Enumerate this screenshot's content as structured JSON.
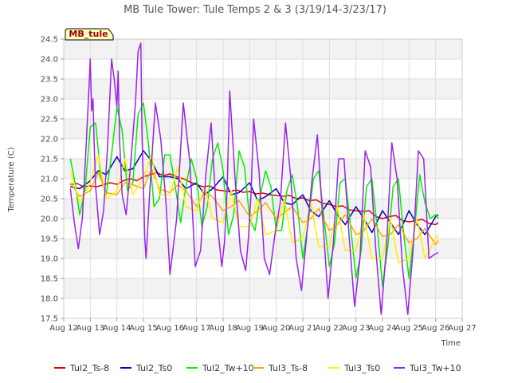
{
  "chart_data": {
    "type": "line",
    "title": "MB Tule Tower: Tule Temps 2 & 3 (3/19/14-3/23/17)",
    "badge": "MB_tule",
    "xlabel": "Time",
    "ylabel": "Temperature (C)",
    "xlim": [
      12,
      27
    ],
    "ylim": [
      17.5,
      24.5
    ],
    "x_ticks": [
      12,
      13,
      14,
      15,
      16,
      17,
      18,
      19,
      20,
      21,
      22,
      23,
      24,
      25,
      26,
      27
    ],
    "x_tick_labels": [
      "Aug 12",
      "Aug 13",
      "Aug 14",
      "Aug 15",
      "Aug 16",
      "Aug 17",
      "Aug 18",
      "Aug 19",
      "Aug 20",
      "Aug 21",
      "Aug 22",
      "Aug 23",
      "Aug 24",
      "Aug 25",
      "Aug 26",
      "Aug 27"
    ],
    "y_ticks": [
      17.5,
      18.0,
      18.5,
      19.0,
      19.5,
      20.0,
      20.5,
      21.0,
      21.5,
      22.0,
      22.5,
      23.0,
      23.5,
      24.0,
      24.5
    ],
    "y_tick_labels": [
      "17.5",
      "18.0",
      "18.5",
      "19.0",
      "19.5",
      "20.0",
      "20.5",
      "21.0",
      "21.5",
      "22.0",
      "22.5",
      "23.0",
      "23.5",
      "24.0",
      "24.5"
    ],
    "grid": true,
    "legend_position": "bottom",
    "series": [
      {
        "name": "Tul2_Ts-8",
        "color": "#dd0000",
        "x": [
          12.25,
          12.5,
          12.75,
          13,
          13.25,
          13.5,
          13.75,
          14,
          14.25,
          14.5,
          14.75,
          15,
          15.25,
          15.5,
          15.75,
          16,
          16.25,
          16.5,
          16.75,
          17,
          17.25,
          17.5,
          17.75,
          18,
          18.25,
          18.5,
          18.75,
          19,
          19.25,
          19.5,
          19.75,
          20,
          20.25,
          20.5,
          20.75,
          21,
          21.25,
          21.5,
          21.75,
          22,
          22.25,
          22.5,
          22.75,
          23,
          23.25,
          23.5,
          23.75,
          24,
          24.25,
          24.5,
          24.75,
          25,
          25.25,
          25.5,
          25.75,
          26,
          26.1
        ],
        "values": [
          20.85,
          20.88,
          20.8,
          20.82,
          20.8,
          20.85,
          20.9,
          20.86,
          20.95,
          21.0,
          20.95,
          21.05,
          21.1,
          21.15,
          21.08,
          21.12,
          21.05,
          21.0,
          20.92,
          20.85,
          20.8,
          20.82,
          20.72,
          20.7,
          20.68,
          20.72,
          20.66,
          20.68,
          20.62,
          20.64,
          20.6,
          20.58,
          20.56,
          20.58,
          20.5,
          20.52,
          20.45,
          20.47,
          20.38,
          20.36,
          20.3,
          20.32,
          20.22,
          20.2,
          20.18,
          20.2,
          20.05,
          20.0,
          20.05,
          20.08,
          19.95,
          19.92,
          19.95,
          19.98,
          19.88,
          19.85,
          19.9
        ]
      },
      {
        "name": "Tul2_Ts0",
        "color": "#0000cc",
        "x": [
          12.25,
          12.6,
          13,
          13.3,
          13.6,
          14,
          14.3,
          14.6,
          15,
          15.3,
          15.6,
          16,
          16.3,
          16.6,
          17,
          17.3,
          17.6,
          18,
          18.3,
          18.6,
          19,
          19.3,
          19.6,
          20,
          20.3,
          20.6,
          21,
          21.3,
          21.6,
          22,
          22.3,
          22.6,
          23,
          23.3,
          23.6,
          24,
          24.3,
          24.6,
          25,
          25.3,
          25.6,
          26,
          26.1
        ],
        "values": [
          20.8,
          20.75,
          20.95,
          21.2,
          21.1,
          21.55,
          21.2,
          21.25,
          21.7,
          21.45,
          21.05,
          21.05,
          21.0,
          20.75,
          20.9,
          20.6,
          20.75,
          21.05,
          20.6,
          20.65,
          20.9,
          20.45,
          20.55,
          20.75,
          20.4,
          20.35,
          20.6,
          20.2,
          20.05,
          20.45,
          20.1,
          19.85,
          20.3,
          20.0,
          19.65,
          20.2,
          19.9,
          19.6,
          20.2,
          19.85,
          19.6,
          20.05,
          20.1
        ]
      },
      {
        "name": "Tul2_Tw+10",
        "color": "#00ee00",
        "x": [
          12.25,
          12.4,
          12.6,
          12.8,
          13,
          13.2,
          13.4,
          13.6,
          13.8,
          14,
          14.2,
          14.4,
          14.6,
          14.8,
          15,
          15.2,
          15.4,
          15.6,
          15.8,
          16,
          16.2,
          16.4,
          16.6,
          16.8,
          17,
          17.2,
          17.4,
          17.6,
          17.8,
          18,
          18.2,
          18.4,
          18.6,
          18.8,
          19,
          19.2,
          19.4,
          19.6,
          19.8,
          20,
          20.2,
          20.4,
          20.6,
          20.8,
          21,
          21.2,
          21.4,
          21.6,
          21.8,
          22,
          22.2,
          22.4,
          22.6,
          22.8,
          23,
          23.2,
          23.4,
          23.6,
          23.8,
          24,
          24.2,
          24.4,
          24.6,
          24.8,
          25,
          25.2,
          25.4,
          25.6,
          25.8,
          26,
          26.1
        ],
        "values": [
          21.5,
          21.0,
          20.1,
          20.7,
          22.3,
          22.4,
          21.0,
          20.6,
          21.6,
          22.8,
          22.2,
          20.7,
          20.9,
          22.6,
          22.9,
          21.8,
          20.3,
          20.5,
          21.6,
          21.6,
          20.8,
          19.9,
          20.8,
          21.5,
          21.0,
          19.8,
          20.3,
          21.5,
          21.9,
          21.2,
          19.6,
          20.1,
          21.7,
          21.3,
          20.0,
          19.7,
          20.6,
          21.2,
          20.8,
          19.7,
          19.7,
          20.7,
          21.1,
          20.3,
          19.0,
          19.9,
          21.0,
          21.2,
          20.0,
          18.8,
          19.4,
          20.9,
          21.0,
          19.8,
          18.5,
          19.2,
          20.8,
          21.0,
          19.8,
          18.3,
          19.3,
          20.8,
          21.0,
          19.6,
          18.5,
          19.7,
          21.1,
          20.4,
          20.0,
          20.1,
          20.0
        ]
      },
      {
        "name": "Tul3_Ts-8",
        "color": "#ffa500",
        "x": [
          12.25,
          12.6,
          13,
          13.3,
          13.6,
          14,
          14.3,
          14.6,
          15,
          15.3,
          15.6,
          16,
          16.3,
          16.6,
          17,
          17.3,
          17.6,
          18,
          18.3,
          18.6,
          19,
          19.3,
          19.6,
          20,
          20.3,
          20.6,
          21,
          21.3,
          21.6,
          22,
          22.3,
          22.6,
          23,
          23.3,
          23.6,
          24,
          24.3,
          24.6,
          25,
          25.3,
          25.6,
          26,
          26.1
        ],
        "values": [
          20.9,
          20.55,
          20.7,
          21.15,
          20.65,
          20.6,
          20.9,
          20.85,
          20.75,
          21.25,
          20.75,
          20.65,
          20.85,
          20.7,
          20.3,
          20.65,
          20.55,
          20.2,
          20.3,
          20.45,
          20.05,
          20.2,
          20.4,
          20.0,
          20.15,
          20.3,
          19.9,
          20.0,
          20.25,
          19.7,
          19.85,
          20.1,
          19.6,
          19.7,
          20.0,
          19.55,
          19.6,
          19.85,
          19.4,
          19.5,
          19.75,
          19.35,
          19.45
        ]
      },
      {
        "name": "Tul3_Ts0",
        "color": "#ffee00",
        "x": [
          12.25,
          12.6,
          13,
          13.3,
          13.6,
          14,
          14.3,
          14.6,
          15,
          15.3,
          15.6,
          16,
          16.3,
          16.6,
          17,
          17.3,
          17.6,
          18,
          18.3,
          18.6,
          19,
          19.3,
          19.6,
          20,
          20.3,
          20.6,
          21,
          21.3,
          21.6,
          22,
          22.3,
          22.6,
          23,
          23.3,
          23.6,
          24,
          24.3,
          24.6,
          25,
          25.3,
          25.6,
          26,
          26.1
        ],
        "values": [
          21.2,
          20.4,
          20.9,
          21.6,
          20.5,
          20.7,
          21.5,
          20.6,
          21.0,
          21.6,
          20.6,
          20.6,
          21.3,
          20.3,
          20.2,
          20.8,
          20.0,
          19.9,
          20.7,
          19.8,
          19.8,
          20.5,
          19.6,
          19.7,
          20.5,
          19.4,
          19.5,
          20.4,
          19.3,
          19.3,
          20.3,
          19.2,
          19.2,
          20.1,
          19.0,
          19.0,
          20.0,
          18.9,
          19.0,
          20.0,
          19.0,
          19.5,
          19.6
        ]
      },
      {
        "name": "Tul3_Tw+10",
        "color": "#9922ee",
        "x": [
          12.25,
          12.4,
          12.55,
          12.7,
          12.85,
          12.95,
          13.0,
          13.05,
          13.1,
          13.15,
          13.2,
          13.35,
          13.5,
          13.65,
          13.8,
          13.9,
          14.0,
          14.05,
          14.1,
          14.2,
          14.35,
          14.5,
          14.7,
          14.8,
          14.9,
          14.95,
          15.0,
          15.05,
          15.1,
          15.25,
          15.45,
          15.65,
          15.85,
          16.0,
          16.25,
          16.5,
          16.75,
          16.95,
          17.15,
          17.35,
          17.55,
          17.75,
          17.95,
          18.05,
          18.15,
          18.25,
          18.45,
          18.65,
          18.85,
          18.95,
          19.05,
          19.15,
          19.35,
          19.55,
          19.75,
          19.95,
          20.15,
          20.35,
          20.55,
          20.75,
          20.95,
          21.15,
          21.35,
          21.55,
          21.75,
          21.95,
          22.15,
          22.35,
          22.55,
          22.75,
          22.95,
          23.15,
          23.35,
          23.55,
          23.75,
          23.95,
          24.15,
          24.35,
          24.55,
          24.75,
          24.95,
          25.15,
          25.35,
          25.55,
          25.75,
          25.95,
          26.1
        ],
        "values": [
          20.75,
          19.9,
          19.25,
          20.0,
          21.9,
          23.3,
          24.0,
          22.7,
          23.0,
          21.8,
          20.8,
          19.6,
          20.2,
          21.8,
          24.0,
          23.5,
          22.8,
          23.7,
          22.0,
          20.6,
          20.1,
          21.2,
          22.9,
          24.2,
          24.4,
          22.0,
          20.8,
          19.5,
          19.0,
          20.8,
          22.9,
          22.0,
          20.4,
          18.6,
          20.0,
          22.9,
          21.4,
          18.8,
          19.2,
          21.1,
          22.4,
          20.1,
          18.8,
          19.4,
          20.7,
          23.2,
          21.0,
          19.2,
          18.7,
          19.5,
          20.6,
          22.5,
          21.2,
          19.0,
          18.6,
          19.6,
          20.4,
          22.4,
          21.0,
          19.0,
          18.2,
          19.6,
          21.0,
          22.1,
          20.0,
          18.0,
          19.4,
          21.5,
          21.5,
          19.5,
          17.8,
          19.0,
          21.7,
          21.3,
          19.2,
          17.6,
          19.3,
          21.9,
          21.0,
          18.8,
          17.6,
          19.2,
          21.7,
          21.5,
          19.0,
          19.1,
          19.15
        ]
      }
    ]
  }
}
